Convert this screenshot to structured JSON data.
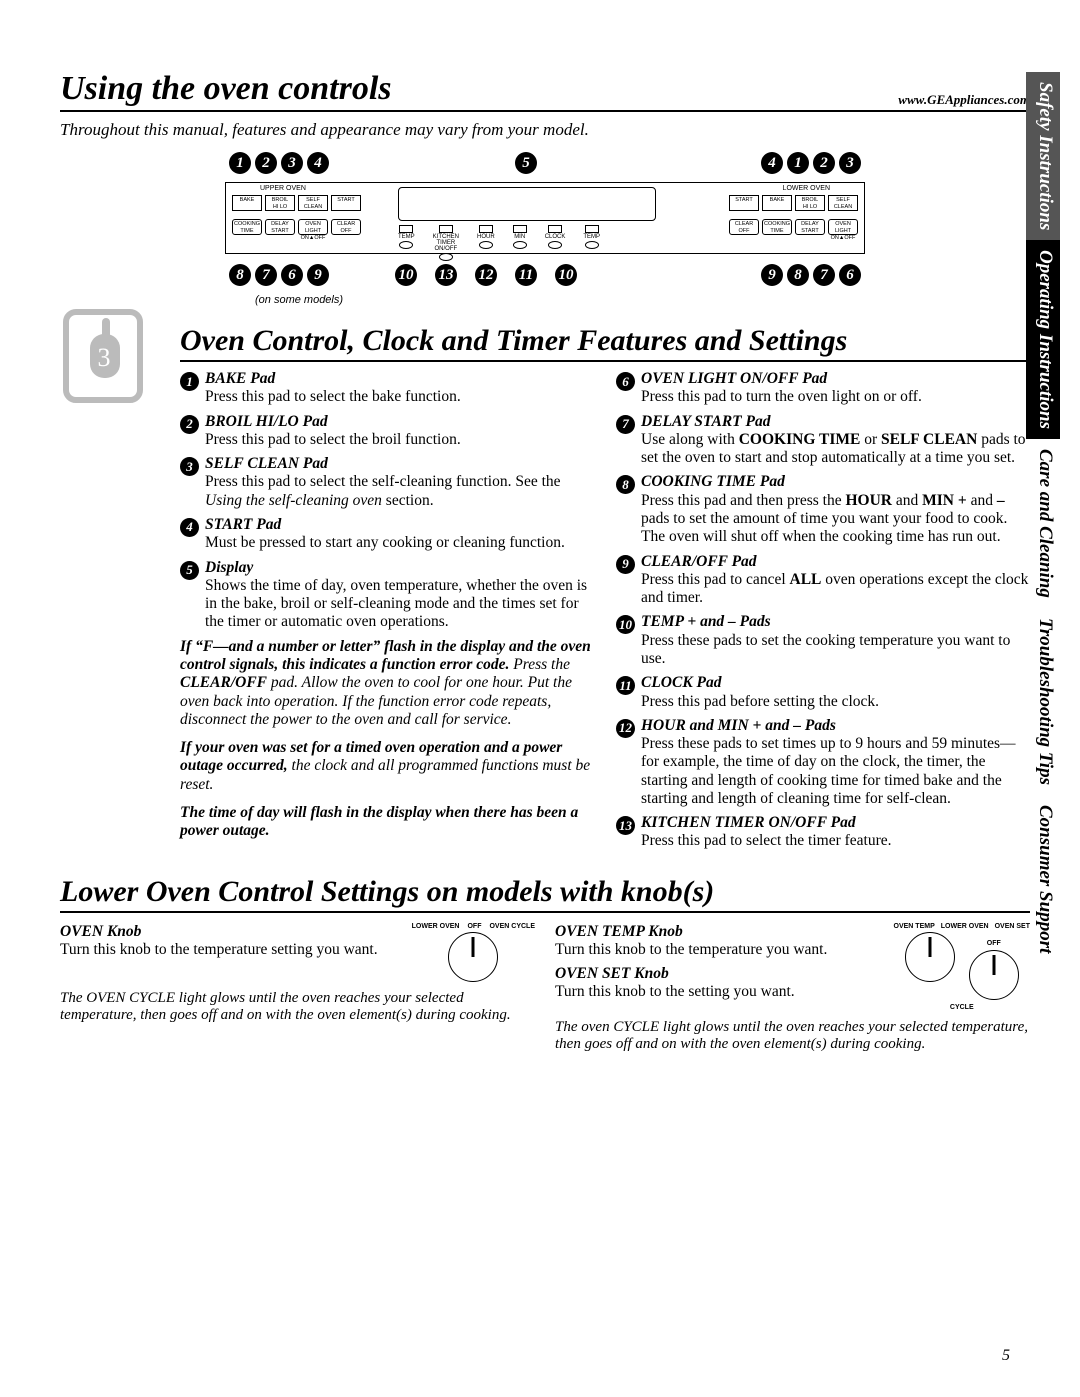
{
  "header": {
    "title": "Using the oven controls",
    "url": "www.GEAppliances.com",
    "intro": "Throughout this manual, features and appearance may vary from your model."
  },
  "panel": {
    "topNumsLeft": [
      "1",
      "2",
      "3",
      "4"
    ],
    "topNumMid": "5",
    "topNumsRight": [
      "4",
      "1",
      "2",
      "3"
    ],
    "botNumsLeft": [
      "8",
      "7",
      "6",
      "9"
    ],
    "botNumsMid": [
      "10",
      "13",
      "12",
      "11",
      "10"
    ],
    "botNumsRight": [
      "9",
      "8",
      "7",
      "6"
    ],
    "upperOven": "UPPER OVEN",
    "lowerOven": "LOWER OVEN",
    "row1L": [
      "BAKE",
      "BROIL\nHI   LO",
      "SELF\nCLEAN",
      "START"
    ],
    "row1R": [
      "START",
      "BAKE",
      "BROIL\nHI   LO",
      "SELF\nCLEAN"
    ],
    "row2L": [
      "COOKING\nTIME",
      "DELAY\nSTART",
      "OVEN\nLIGHT\nON▲OFF",
      "CLEAR\nOFF"
    ],
    "row2R": [
      "CLEAR\nOFF",
      "COOKING\nTIME",
      "DELAY\nSTART",
      "OVEN\nLIGHT\nON▲OFF"
    ],
    "padsMid": [
      "TEMP",
      "KITCHEN\nTIMER\nON/OFF",
      "HOUR",
      "MIN",
      "CLOCK",
      "TEMP"
    ],
    "onmodels": "(on some models)"
  },
  "section1": {
    "heading": "Oven Control, Clock and Timer Features and Settings"
  },
  "features": {
    "left": [
      {
        "n": "1",
        "t": "BAKE Pad",
        "b": "Press this pad to select the bake function."
      },
      {
        "n": "2",
        "t": "BROIL HI/LO Pad",
        "b": "Press this pad to select the broil function."
      },
      {
        "n": "3",
        "t": "SELF CLEAN Pad",
        "b": "Press this pad to select the self-cleaning function. See the <i>Using the self-cleaning oven</i> section."
      },
      {
        "n": "4",
        "t": "START Pad",
        "b": "Must be pressed to start any cooking or cleaning function."
      },
      {
        "n": "5",
        "t": "Display",
        "b": "Shows the time of day, oven temperature, whether the oven is in the bake, broil or self-cleaning mode and the times set for the timer or automatic oven operations."
      }
    ],
    "notes": [
      "<b>If “F—and a number or letter” flash in the display and the oven control signals, this indicates a function error code.</b> Press the <b>CLEAR/OFF</b> pad. Allow the oven to cool for one hour. Put the oven back into operation. If the function error code repeats, disconnect the power to the oven and call for service.",
      "<b>If your oven was set for a timed oven operation and a power outage occurred,</b> the clock and all programmed functions must be reset.",
      "<b>The time of day will flash in the display when there has been a power outage.</b>"
    ],
    "right": [
      {
        "n": "6",
        "t": "OVEN LIGHT ON/OFF Pad",
        "b": "Press this pad to turn the oven light on or off."
      },
      {
        "n": "7",
        "t": "DELAY START Pad",
        "b": "Use along with <b>COOKING TIME</b> or <b>SELF CLEAN</b> pads to set the oven to start and stop automatically at a time you set."
      },
      {
        "n": "8",
        "t": "COOKING TIME Pad",
        "b": "Press this pad and then press the <b>HOUR</b> and <b>MIN +</b> and <b>–</b> pads to set the amount of time you want your food to cook. The oven will shut off when the cooking time has run out."
      },
      {
        "n": "9",
        "t": "CLEAR/OFF Pad",
        "b": "Press this pad to cancel <b>ALL</b>  oven operations except the clock and timer."
      },
      {
        "n": "10",
        "t": "TEMP + and – Pads",
        "b": "Press these pads to set the cooking temperature you want to use."
      },
      {
        "n": "11",
        "t": "CLOCK Pad",
        "b": "Press this pad before setting the clock."
      },
      {
        "n": "12",
        "t": "HOUR and MIN + and – Pads",
        "b": "Press these pads to set times up to 9 hours and 59 minutes—for example, the time of day on the clock, the timer, the starting and length of cooking time for timed bake and the starting and length of cleaning time for self-clean."
      },
      {
        "n": "13",
        "t": "KITCHEN TIMER ON/OFF Pad",
        "b": "Press this pad to select the timer feature."
      }
    ]
  },
  "section2": {
    "heading": "Lower Oven Control Settings on models with knob(s)"
  },
  "lower": {
    "left": {
      "t1": "OVEN Knob",
      "b1": "Turn this knob to the temperature setting you want.",
      "note": "The OVEN CYCLE light glows until the oven reaches your selected temperature, then goes off and on with the oven element(s) during cooking.",
      "lab1": "LOWER OVEN",
      "lab2": "OFF",
      "lab3": "OVEN CYCLE"
    },
    "right": {
      "t1": "OVEN TEMP Knob",
      "b1": "Turn this knob to the temperature you want.",
      "t2": "OVEN SET Knob",
      "b2": "Turn this knob to the setting you want.",
      "note": "The oven CYCLE light glows until the oven reaches your selected temperature, then goes off and on with the oven element(s) during cooking.",
      "lab1": "OVEN TEMP",
      "lab2": "LOWER OVEN",
      "lab3": "OVEN SET",
      "lab4": "OFF",
      "lab5": "CYCLE"
    }
  },
  "tabs": [
    "Safety Instructions",
    "Operating Instructions",
    "Care and Cleaning",
    "Troubleshooting Tips",
    "Consumer Support"
  ],
  "pageNum": "5"
}
